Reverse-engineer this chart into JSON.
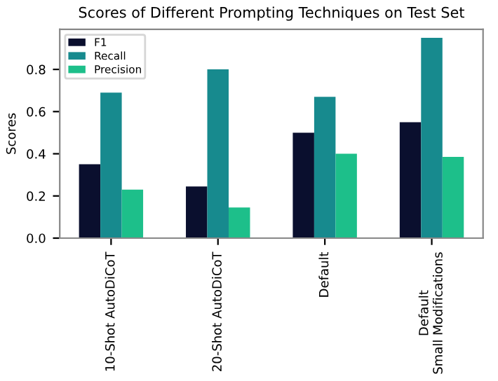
{
  "chart_data": {
    "type": "bar",
    "title": "Scores of Different Prompting Techniques on Test Set",
    "ylabel": "Scores",
    "categories": [
      "10-Shot AutoDiCoT",
      "20-Shot AutoDiCoT",
      "Default",
      "Default\nSmall Modifications"
    ],
    "series": [
      {
        "name": "F1",
        "color": "#0a0f2e",
        "values": [
          0.35,
          0.245,
          0.5,
          0.55
        ]
      },
      {
        "name": "Recall",
        "color": "#178a8e",
        "values": [
          0.69,
          0.8,
          0.67,
          0.95
        ]
      },
      {
        "name": "Precision",
        "color": "#1dbf8a",
        "values": [
          0.23,
          0.145,
          0.4,
          0.385
        ]
      }
    ],
    "ylim": [
      0,
      0.99
    ],
    "yticks": [
      {
        "value": 0,
        "label": "0.0"
      },
      {
        "value": 0.2,
        "label": "0.2"
      },
      {
        "value": 0.4,
        "label": "0.4"
      },
      {
        "value": 0.6,
        "label": "0.6"
      },
      {
        "value": 0.8,
        "label": "0.8"
      }
    ],
    "grid": false,
    "legend": "top left"
  }
}
